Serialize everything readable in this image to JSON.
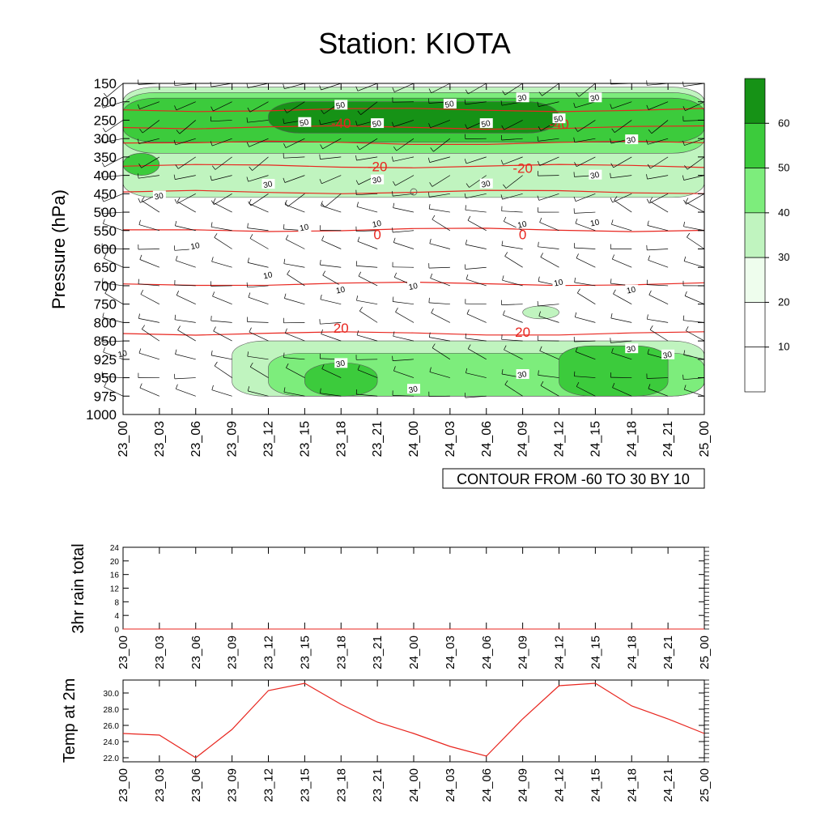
{
  "title": "Station: KIOTA",
  "contour_label": "CONTOUR FROM -60 TO 30 BY 10",
  "time_labels": [
    "23_00",
    "23_03",
    "23_06",
    "23_09",
    "23_12",
    "23_15",
    "23_18",
    "23_21",
    "24_00",
    "24_03",
    "24_06",
    "24_09",
    "24_12",
    "24_15",
    "24_18",
    "24_21",
    "25_00"
  ],
  "colors": {
    "temperature_line": "#e8261f",
    "fill_levels": [
      "#ffffff",
      "#eefded",
      "#c0f4bf",
      "#7ded7c",
      "#3ccb3c",
      "#169216"
    ]
  },
  "chart_data": [
    {
      "type": "heatmap",
      "title": "Station: KIOTA",
      "ylabel": "Pressure (hPa)",
      "y_scale": "pressure",
      "y_ticks": [
        150,
        200,
        250,
        300,
        350,
        400,
        450,
        500,
        550,
        600,
        650,
        700,
        750,
        800,
        850,
        925,
        950,
        975,
        1000
      ],
      "x_tick_labels": [
        "23_00",
        "23_03",
        "23_06",
        "23_09",
        "23_12",
        "23_15",
        "23_18",
        "23_21",
        "24_00",
        "24_03",
        "24_06",
        "24_09",
        "24_12",
        "24_15",
        "24_18",
        "24_21",
        "25_00"
      ],
      "colorbar": {
        "ticks": [
          10,
          20,
          30,
          40,
          50,
          60
        ],
        "levels": [
          0,
          10,
          20,
          30,
          40,
          50,
          60,
          70
        ]
      },
      "shaded_field": {
        "variable": "wind speed",
        "regions": [
          {
            "level": 20,
            "time_range": [
              "23_00",
              "25_00"
            ],
            "pressure_range": [
              160,
              460
            ]
          },
          {
            "level": 30,
            "time_range": [
              "23_00",
              "25_00"
            ],
            "pressure_range": [
              175,
              340
            ]
          },
          {
            "level": 40,
            "time_range": [
              "23_00",
              "25_00"
            ],
            "pressure_range": [
              190,
              310
            ]
          },
          {
            "level": 40,
            "time_range": [
              "23_00",
              "23_03"
            ],
            "pressure_range": [
              340,
              400
            ]
          },
          {
            "level": 50,
            "time_range": [
              "23_12",
              "24_12"
            ],
            "pressure_range": [
              200,
              285
            ]
          },
          {
            "level": 20,
            "time_range": [
              "23_09",
              "25_00"
            ],
            "pressure_range": [
              850,
              975
            ]
          },
          {
            "level": 30,
            "time_range": [
              "23_12",
              "25_00"
            ],
            "pressure_range": [
              900,
              975
            ]
          },
          {
            "level": 40,
            "time_range": [
              "23_15",
              "23_21"
            ],
            "pressure_range": [
              930,
              975
            ]
          },
          {
            "level": 40,
            "time_range": [
              "24_12",
              "24_21"
            ],
            "pressure_range": [
              870,
              975
            ]
          },
          {
            "level": 20,
            "time_range": [
              "24_09",
              "24_12"
            ],
            "pressure_range": [
              755,
              790
            ]
          }
        ]
      },
      "temperature_contours": [
        {
          "value": -40,
          "pressure": 222
        },
        {
          "value": -40,
          "pressure": 270
        },
        {
          "value": -30,
          "pressure": 312
        },
        {
          "value": -20,
          "pressure": 375
        },
        {
          "value": -10,
          "pressure": 445
        },
        {
          "value": 0,
          "pressure": 548
        },
        {
          "value": 10,
          "pressure": 695
        },
        {
          "value": 20,
          "pressure": 830
        }
      ],
      "contour_labels": [
        {
          "text": "-40",
          "time": "23_18",
          "pressure": 258
        },
        {
          "text": "-40",
          "time": "24_12",
          "pressure": 260
        },
        {
          "text": "-20",
          "time": "23_21",
          "pressure": 376
        },
        {
          "text": "-20",
          "time": "24_09",
          "pressure": 380
        },
        {
          "text": "0",
          "time": "23_21",
          "pressure": 560
        },
        {
          "text": "0",
          "time": "24_09",
          "pressure": 560
        },
        {
          "text": "20",
          "time": "23_18",
          "pressure": 815
        },
        {
          "text": "20",
          "time": "24_09",
          "pressure": 825
        }
      ],
      "speed_labels": [
        {
          "text": "50",
          "time": "23_15",
          "pressure": 255
        },
        {
          "text": "50",
          "time": "23_18",
          "pressure": 208
        },
        {
          "text": "50",
          "time": "23_21",
          "pressure": 258
        },
        {
          "text": "50",
          "time": "24_03",
          "pressure": 205
        },
        {
          "text": "50",
          "time": "24_06",
          "pressure": 258
        },
        {
          "text": "50",
          "time": "24_12",
          "pressure": 245
        },
        {
          "text": "30",
          "time": "24_09",
          "pressure": 188
        },
        {
          "text": "30",
          "time": "24_15",
          "pressure": 188
        },
        {
          "text": "30",
          "time": "24_18",
          "pressure": 302
        },
        {
          "text": "30",
          "time": "24_15",
          "pressure": 398
        },
        {
          "text": "30",
          "time": "23_12",
          "pressure": 423
        },
        {
          "text": "30",
          "time": "23_03",
          "pressure": 455
        },
        {
          "text": "30",
          "time": "23_21",
          "pressure": 411
        },
        {
          "text": "30",
          "time": "24_06",
          "pressure": 422
        },
        {
          "text": "10",
          "time": "23_15",
          "pressure": 540
        },
        {
          "text": "10",
          "time": "23_21",
          "pressure": 530
        },
        {
          "text": "10",
          "time": "24_09",
          "pressure": 532
        },
        {
          "text": "10",
          "time": "24_15",
          "pressure": 527
        },
        {
          "text": "10",
          "time": "23_06",
          "pressure": 590
        },
        {
          "text": "10",
          "time": "23_12",
          "pressure": 670
        },
        {
          "text": "10",
          "time": "23_18",
          "pressure": 710
        },
        {
          "text": "10",
          "time": "24_00",
          "pressure": 700
        },
        {
          "text": "10",
          "time": "24_12",
          "pressure": 690
        },
        {
          "text": "10",
          "time": "24_18",
          "pressure": 710
        },
        {
          "text": "10",
          "time": "23_00",
          "pressure": 900
        },
        {
          "text": "30",
          "time": "23_18",
          "pressure": 930
        },
        {
          "text": "30",
          "time": "24_00",
          "pressure": 965
        },
        {
          "text": "30",
          "time": "24_09",
          "pressure": 945
        },
        {
          "text": "30",
          "time": "24_18",
          "pressure": 880
        },
        {
          "text": "30",
          "time": "24_21",
          "pressure": 905
        }
      ]
    },
    {
      "type": "line",
      "ylabel": "3hr rain total",
      "x": [
        "23_00",
        "23_03",
        "23_06",
        "23_09",
        "23_12",
        "23_15",
        "23_18",
        "23_21",
        "24_00",
        "24_03",
        "24_06",
        "24_09",
        "24_12",
        "24_15",
        "24_18",
        "24_21",
        "25_00"
      ],
      "values": [
        0,
        0,
        0,
        0,
        0,
        0,
        0,
        0,
        0,
        0,
        0,
        0,
        0,
        0,
        0,
        0,
        0
      ],
      "ylim": [
        0,
        24
      ],
      "y_ticks": [
        "0",
        "4",
        "8",
        "12",
        "16",
        "20",
        "24"
      ]
    },
    {
      "type": "line",
      "ylabel": "Temp at 2m",
      "x": [
        "23_00",
        "23_03",
        "23_06",
        "23_09",
        "23_12",
        "23_15",
        "23_18",
        "23_21",
        "24_00",
        "24_03",
        "24_06",
        "24_09",
        "24_12",
        "24_15",
        "24_18",
        "24_21",
        "25_00"
      ],
      "values": [
        25.0,
        24.8,
        22.0,
        25.5,
        30.3,
        31.2,
        28.6,
        26.4,
        25.0,
        23.4,
        22.2,
        26.8,
        30.9,
        31.2,
        28.4,
        26.8,
        25.0
      ],
      "ylim": [
        21.5,
        31.6
      ],
      "y_ticks": [
        "22.0",
        "24.0",
        "26.0",
        "28.0",
        "30.0"
      ]
    }
  ]
}
